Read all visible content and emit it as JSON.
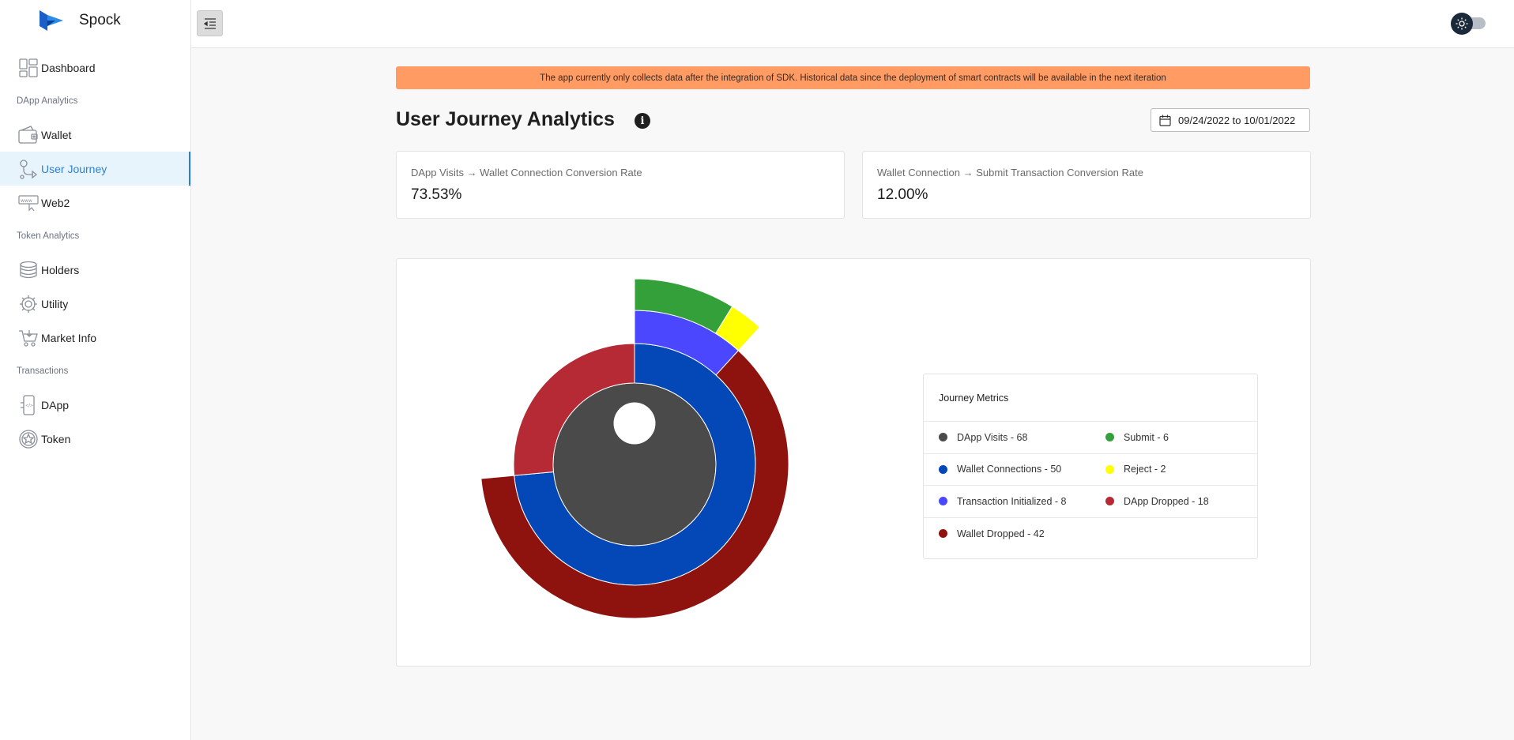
{
  "brand": {
    "name": "Spock"
  },
  "sidebar": {
    "items": [
      {
        "label": "Dashboard",
        "icon": "dashboard-icon"
      },
      {
        "section": "DApp Analytics"
      },
      {
        "label": "Wallet",
        "icon": "wallet-icon"
      },
      {
        "label": "User Journey",
        "icon": "journey-icon",
        "active": true
      },
      {
        "label": "Web2",
        "icon": "web2-icon"
      },
      {
        "section": "Token Analytics"
      },
      {
        "label": "Holders",
        "icon": "coins-icon"
      },
      {
        "label": "Utility",
        "icon": "gear-icon"
      },
      {
        "label": "Market Info",
        "icon": "cart-icon"
      },
      {
        "section": "Transactions"
      },
      {
        "label": "DApp",
        "icon": "phone-icon"
      },
      {
        "label": "Token",
        "icon": "token-icon"
      }
    ]
  },
  "banner": {
    "text": "The app currently only collects data after the integration of SDK. Historical data since the deployment of smart contracts will be available in the next iteration"
  },
  "page": {
    "title": "User Journey Analytics"
  },
  "date_range": {
    "label": "09/24/2022 to 10/01/2022"
  },
  "metrics": [
    {
      "label": "DApp Visits → Wallet Connection Conversion Rate",
      "value": "73.53%"
    },
    {
      "label": "Wallet Connection → Submit Transaction Conversion Rate",
      "value": "12.00%"
    }
  ],
  "legend": {
    "title": "Journey Metrics",
    "items": [
      {
        "label": "DApp Visits - 68",
        "color": "#4a4a4a"
      },
      {
        "label": "Submit - 6",
        "color": "#34a039"
      },
      {
        "label": "Wallet Connections - 50",
        "color": "#0448b8"
      },
      {
        "label": "Reject - 2",
        "color": "#ffff00"
      },
      {
        "label": "Transaction Initialized - 8",
        "color": "#4a47ff"
      },
      {
        "label": "DApp Dropped - 18",
        "color": "#b52a35"
      },
      {
        "label": "Wallet Dropped - 42",
        "color": "#8e130e"
      }
    ]
  },
  "chart_data": {
    "type": "sunburst",
    "nodes": [
      {
        "name": "DApp Visits",
        "value": 68,
        "level": 1,
        "color": "#4a4a4a"
      },
      {
        "name": "Wallet Connections",
        "value": 50,
        "level": 2,
        "parent": "DApp Visits",
        "color": "#0448b8"
      },
      {
        "name": "DApp Dropped",
        "value": 18,
        "level": 2,
        "parent": "DApp Visits",
        "color": "#b52a35"
      },
      {
        "name": "Transaction Initialized",
        "value": 8,
        "level": 3,
        "parent": "Wallet Connections",
        "color": "#4a47ff"
      },
      {
        "name": "Wallet Dropped",
        "value": 42,
        "level": 3,
        "parent": "Wallet Connections",
        "color": "#8e130e"
      },
      {
        "name": "Submit",
        "value": 6,
        "level": 4,
        "parent": "Transaction Initialized",
        "color": "#34a039"
      },
      {
        "name": "Reject",
        "value": 2,
        "level": 4,
        "parent": "Transaction Initialized",
        "color": "#ffff00"
      }
    ]
  }
}
